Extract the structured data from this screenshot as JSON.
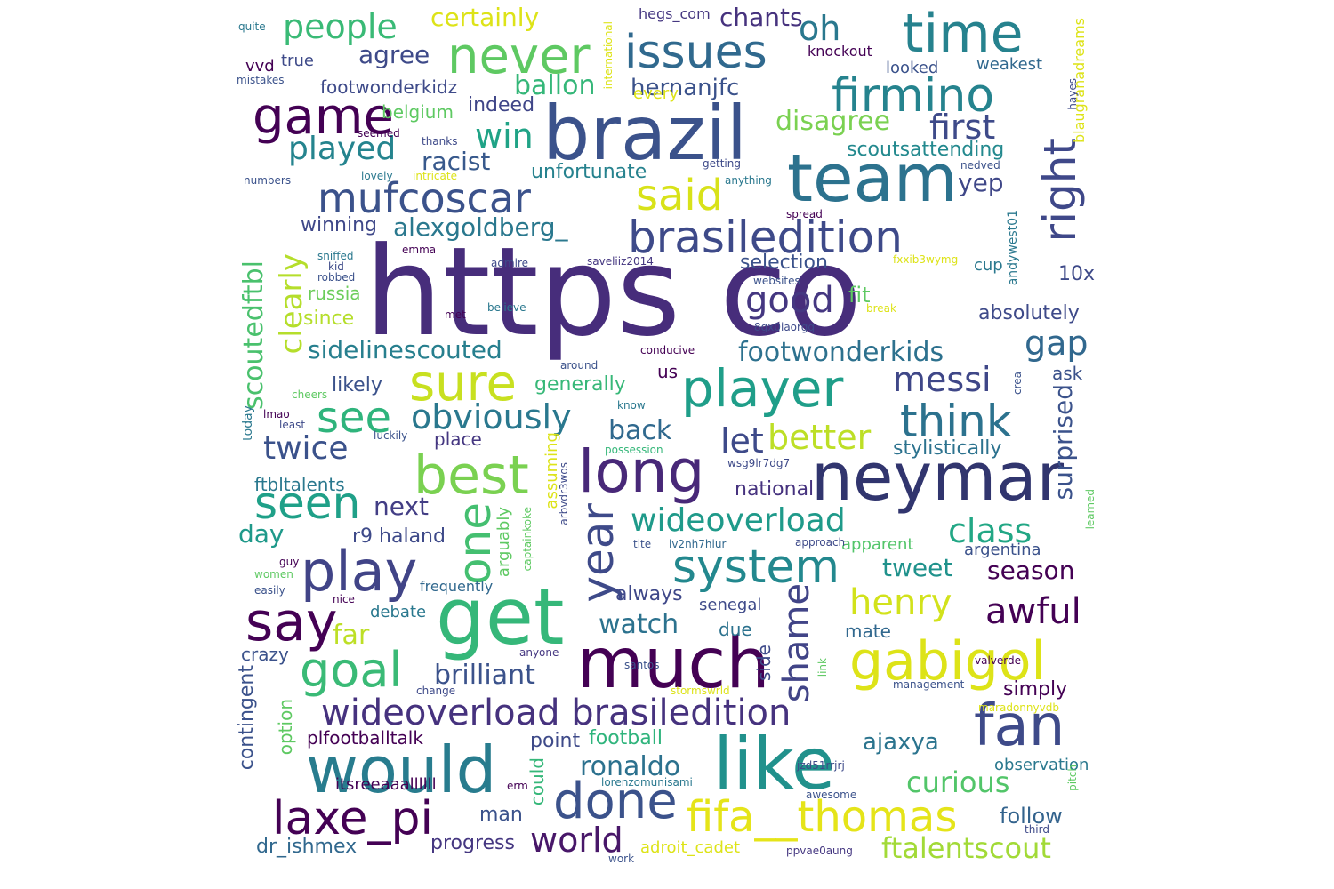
{
  "words": [
    {
      "text": "https co",
      "color": "#472d7b"
    },
    {
      "text": "brazil",
      "color": "#3b528b"
    },
    {
      "text": "team",
      "color": "#2c728e"
    },
    {
      "text": "neymar",
      "color": "#31356e"
    },
    {
      "text": "get",
      "color": "#35b779"
    },
    {
      "text": "much",
      "color": "#440154"
    },
    {
      "text": "like",
      "color": "#21918c"
    },
    {
      "text": "would",
      "color": "#287c8e"
    },
    {
      "text": "player",
      "color": "#1f9e89"
    },
    {
      "text": "time",
      "color": "#26828e"
    },
    {
      "text": "never",
      "color": "#5ec962"
    },
    {
      "text": "game",
      "color": "#440154"
    },
    {
      "text": "issues",
      "color": "#30698e"
    },
    {
      "text": "firmino",
      "color": "#25838e"
    },
    {
      "text": "mufcoscar",
      "color": "#3b528b"
    },
    {
      "text": "brasiledition",
      "color": "#3e4a89"
    },
    {
      "text": "sure",
      "color": "#c8e020"
    },
    {
      "text": "said",
      "color": "#d8e219"
    },
    {
      "text": "long",
      "color": "#482878"
    },
    {
      "text": "best",
      "color": "#7ad151"
    },
    {
      "text": "play",
      "color": "#414487"
    },
    {
      "text": "system",
      "color": "#23888e"
    },
    {
      "text": "fan",
      "color": "#3e4a89"
    },
    {
      "text": "gabigol",
      "color": "#dde318"
    },
    {
      "text": "wideoverload brasiledition",
      "color": "#46327e"
    },
    {
      "text": "fifa__thomas",
      "color": "#e5e419"
    },
    {
      "text": "done",
      "color": "#3b528b"
    },
    {
      "text": "laxe_pi",
      "color": "#440154"
    },
    {
      "text": "say",
      "color": "#440154"
    },
    {
      "text": "goal",
      "color": "#3aba76"
    },
    {
      "text": "year",
      "color": "#3e4a89"
    },
    {
      "text": "one",
      "color": "#44bf70"
    },
    {
      "text": "seen",
      "color": "#1fa088"
    },
    {
      "text": "see",
      "color": "#2fb47c"
    },
    {
      "text": "obviously",
      "color": "#2a788e"
    },
    {
      "text": "think",
      "color": "#2c728e"
    },
    {
      "text": "right",
      "color": "#3f4889"
    },
    {
      "text": "people",
      "color": "#3aba76"
    },
    {
      "text": "oh",
      "color": "#2a788e"
    },
    {
      "text": "played",
      "color": "#25848e"
    },
    {
      "text": "win",
      "color": "#20a386"
    },
    {
      "text": "first",
      "color": "#3e4a89"
    },
    {
      "text": "clearly",
      "color": "#b5de2b"
    },
    {
      "text": "good",
      "color": "#453781"
    },
    {
      "text": "messi",
      "color": "#3f4788"
    },
    {
      "text": "better",
      "color": "#bddf26"
    },
    {
      "text": "twice",
      "color": "#3b528b"
    },
    {
      "text": "wideoverload",
      "color": "#1f9a8a"
    },
    {
      "text": "class",
      "color": "#22a785"
    },
    {
      "text": "henry",
      "color": "#d2e21b"
    },
    {
      "text": "awful",
      "color": "#440154"
    },
    {
      "text": "shame",
      "color": "#414487"
    },
    {
      "text": "ronaldo",
      "color": "#2c718e"
    },
    {
      "text": "world",
      "color": "#481769"
    },
    {
      "text": "ftalentscout",
      "color": "#a2da37"
    },
    {
      "text": "curious",
      "color": "#52c569"
    },
    {
      "text": "brilliant",
      "color": "#3b528b"
    },
    {
      "text": "gap",
      "color": "#31688e"
    },
    {
      "text": "footwonderkids",
      "color": "#2d718e"
    },
    {
      "text": "sidelinescouted",
      "color": "#277f8e"
    },
    {
      "text": "scoutedftbl",
      "color": "#4ac16d"
    },
    {
      "text": "alexgoldberg_",
      "color": "#2a788e"
    },
    {
      "text": "certainly",
      "color": "#dde318"
    },
    {
      "text": "chants",
      "color": "#46327e"
    },
    {
      "text": "agree",
      "color": "#3e4a89"
    },
    {
      "text": "ballon",
      "color": "#35b779"
    },
    {
      "text": "hernanjfc",
      "color": "#3b528b"
    },
    {
      "text": "disagree",
      "color": "#7ad151"
    },
    {
      "text": "racist",
      "color": "#38598c"
    },
    {
      "text": "yep",
      "color": "#3f4788"
    },
    {
      "text": "let",
      "color": "#3e4a89"
    },
    {
      "text": "back",
      "color": "#30698e"
    },
    {
      "text": "next",
      "color": "#433e85"
    },
    {
      "text": "day",
      "color": "#1f998a"
    },
    {
      "text": "watch",
      "color": "#2c728e"
    },
    {
      "text": "tweet",
      "color": "#20928c"
    },
    {
      "text": "season",
      "color": "#440154"
    },
    {
      "text": "ajaxya",
      "color": "#2b748e"
    },
    {
      "text": "follow",
      "color": "#33638d"
    },
    {
      "text": "far",
      "color": "#bddf26"
    },
    {
      "text": "surprised",
      "color": "#3b528b"
    },
    {
      "text": "winning",
      "color": "#3f4889"
    },
    {
      "text": "footwonderkidz",
      "color": "#3e4a89"
    },
    {
      "text": "belgium",
      "color": "#5ec962"
    },
    {
      "text": "indeed",
      "color": "#404688"
    },
    {
      "text": "unfortunate",
      "color": "#26828e"
    },
    {
      "text": "scoutsattending",
      "color": "#23898e"
    },
    {
      "text": "selection",
      "color": "#3b528b"
    },
    {
      "text": "absolutely",
      "color": "#3e4a89"
    },
    {
      "text": "stylistically",
      "color": "#2c728e"
    },
    {
      "text": "national",
      "color": "#46327e"
    },
    {
      "text": "generally",
      "color": "#37b878"
    },
    {
      "text": "likely",
      "color": "#3b528b"
    },
    {
      "text": "since",
      "color": "#b5de2b"
    },
    {
      "text": "russia",
      "color": "#6ccd5a"
    },
    {
      "text": "place",
      "color": "#453781"
    },
    {
      "text": "ftbltalents",
      "color": "#2a788e"
    },
    {
      "text": "r9 haland",
      "color": "#3e4a89"
    },
    {
      "text": "argentina",
      "color": "#3b528b"
    },
    {
      "text": "apparent",
      "color": "#52c569"
    },
    {
      "text": "always",
      "color": "#3f4889"
    },
    {
      "text": "due",
      "color": "#2c728e"
    },
    {
      "text": "mate",
      "color": "#31688e"
    },
    {
      "text": "senegal",
      "color": "#3e4a89"
    },
    {
      "text": "debate",
      "color": "#2a788e"
    },
    {
      "text": "frequently",
      "color": "#31688e"
    },
    {
      "text": "crazy",
      "color": "#3b528b"
    },
    {
      "text": "simply",
      "color": "#440154"
    },
    {
      "text": "point",
      "color": "#3e4a89"
    },
    {
      "text": "football",
      "color": "#2fb47c"
    },
    {
      "text": "plfootballtalk",
      "color": "#440154"
    },
    {
      "text": "observation",
      "color": "#2a788e"
    },
    {
      "text": "man",
      "color": "#3b528b"
    },
    {
      "text": "progress",
      "color": "#453781"
    },
    {
      "text": "dr_ishmex",
      "color": "#31688e"
    },
    {
      "text": "adroit_cadet",
      "color": "#dde318"
    },
    {
      "text": "itsreeaaallllll",
      "color": "#440154"
    },
    {
      "text": "could",
      "color": "#35b779"
    },
    {
      "text": "contingent",
      "color": "#3b528b"
    },
    {
      "text": "option",
      "color": "#5ec962"
    },
    {
      "text": "10x",
      "color": "#3e4a89"
    },
    {
      "text": "cup",
      "color": "#2a788e"
    },
    {
      "text": "fit",
      "color": "#5ec962"
    },
    {
      "text": "us",
      "color": "#440154"
    },
    {
      "text": "ask",
      "color": "#3b528b"
    },
    {
      "text": "side",
      "color": "#3e4a89"
    },
    {
      "text": "hegs_com",
      "color": "#453781"
    },
    {
      "text": "knockout",
      "color": "#440154"
    },
    {
      "text": "looked",
      "color": "#3b528b"
    },
    {
      "text": "weakest",
      "color": "#31688e"
    },
    {
      "text": "every",
      "color": "#dde318"
    },
    {
      "text": "true",
      "color": "#3e4a89"
    },
    {
      "text": "vvd",
      "color": "#440154"
    },
    {
      "text": "quite",
      "color": "#2a788e"
    },
    {
      "text": "mistakes",
      "color": "#3b528b"
    },
    {
      "text": "seemed",
      "color": "#440154"
    },
    {
      "text": "thanks",
      "color": "#3e4a89"
    },
    {
      "text": "lovely",
      "color": "#2a788e"
    },
    {
      "text": "intricate",
      "color": "#dde318"
    },
    {
      "text": "numbers",
      "color": "#3b528b"
    },
    {
      "text": "getting",
      "color": "#3e4a89"
    },
    {
      "text": "anything",
      "color": "#2a788e"
    },
    {
      "text": "nedved",
      "color": "#3b528b"
    },
    {
      "text": "spread",
      "color": "#440154"
    },
    {
      "text": "sniffed",
      "color": "#2a788e"
    },
    {
      "text": "kid",
      "color": "#3e4a89"
    },
    {
      "text": "robbed",
      "color": "#3b528b"
    },
    {
      "text": "emma",
      "color": "#440154"
    },
    {
      "text": "admire",
      "color": "#3e4a89"
    },
    {
      "text": "saveliiz2014",
      "color": "#453781"
    },
    {
      "text": "websites",
      "color": "#3b528b"
    },
    {
      "text": "fxxib3wymg",
      "color": "#dde318"
    },
    {
      "text": "met",
      "color": "#440154"
    },
    {
      "text": "believe",
      "color": "#2a788e"
    },
    {
      "text": "break",
      "color": "#dde318"
    },
    {
      "text": "8gx0iaorgq",
      "color": "#3e4a89"
    },
    {
      "text": "conducive",
      "color": "#440154"
    },
    {
      "text": "around",
      "color": "#3b528b"
    },
    {
      "text": "cheers",
      "color": "#5ec962"
    },
    {
      "text": "lmao",
      "color": "#440154"
    },
    {
      "text": "least",
      "color": "#3e4a89"
    },
    {
      "text": "know",
      "color": "#2a788e"
    },
    {
      "text": "luckily",
      "color": "#3b528b"
    },
    {
      "text": "possession",
      "color": "#35b779"
    },
    {
      "text": "wsg9lr7dg7",
      "color": "#3e4a89"
    },
    {
      "text": "tite",
      "color": "#3b528b"
    },
    {
      "text": "lv2nh7hiur",
      "color": "#31688e"
    },
    {
      "text": "approach",
      "color": "#3e4a89"
    },
    {
      "text": "guy",
      "color": "#440154"
    },
    {
      "text": "women",
      "color": "#5ec962"
    },
    {
      "text": "easily",
      "color": "#3b528b"
    },
    {
      "text": "nice",
      "color": "#440154"
    },
    {
      "text": "anyone",
      "color": "#453781"
    },
    {
      "text": "santos",
      "color": "#3b528b"
    },
    {
      "text": "change",
      "color": "#3e4a89"
    },
    {
      "text": "stormswrld",
      "color": "#dde318"
    },
    {
      "text": "link",
      "color": "#5ec962"
    },
    {
      "text": "valverde",
      "color": "#440154"
    },
    {
      "text": "management",
      "color": "#3b528b"
    },
    {
      "text": "maradonnyvdb",
      "color": "#dde318"
    },
    {
      "text": "jzd51rrjrj",
      "color": "#3e4a89"
    },
    {
      "text": "lorenzomunisami",
      "color": "#2a788e"
    },
    {
      "text": "erm",
      "color": "#440154"
    },
    {
      "text": "awesome",
      "color": "#3b528b"
    },
    {
      "text": "pitch",
      "color": "#5ec962"
    },
    {
      "text": "third",
      "color": "#3e4a89"
    },
    {
      "text": "work",
      "color": "#3b528b"
    },
    {
      "text": "ppvae0aung",
      "color": "#453781"
    },
    {
      "text": "today",
      "color": "#2a788e"
    },
    {
      "text": "assuming",
      "color": "#dde318"
    },
    {
      "text": "arguably",
      "color": "#5ec962"
    },
    {
      "text": "captainkoke",
      "color": "#5ec962"
    },
    {
      "text": "arbvdr3wos",
      "color": "#3e4a89"
    },
    {
      "text": "international",
      "color": "#dde318"
    },
    {
      "text": "blaugranadreams",
      "color": "#dde318"
    },
    {
      "text": "hayes",
      "color": "#3e4a89"
    },
    {
      "text": "andywest01",
      "color": "#2a788e"
    },
    {
      "text": "crea",
      "color": "#3b528b"
    },
    {
      "text": "learned",
      "color": "#5ec962"
    }
  ]
}
